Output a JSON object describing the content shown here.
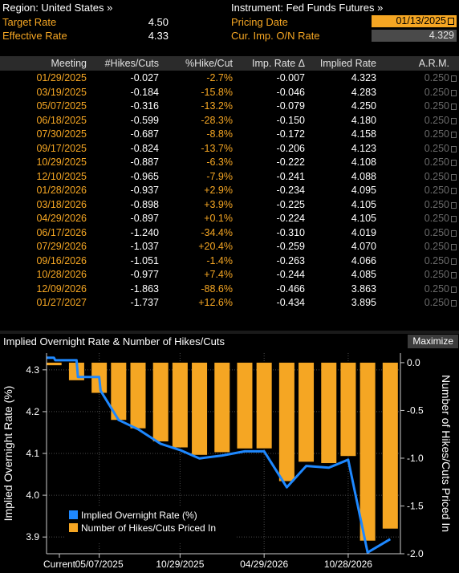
{
  "header": {
    "region_label": "Region: United States »",
    "instrument_label": "Instrument: Fed Funds Futures »",
    "target_rate_label": "Target Rate",
    "target_rate_value": "4.50",
    "effective_rate_label": "Effective Rate",
    "effective_rate_value": "4.33",
    "pricing_date_label": "Pricing Date",
    "pricing_date_value": "01/13/2025",
    "cur_imp_label": "Cur. Imp. O/N Rate",
    "cur_imp_value": "4.329"
  },
  "table": {
    "columns": [
      "Meeting",
      "#Hikes/Cuts",
      "%Hike/Cut",
      "Imp. Rate Δ",
      "Implied Rate",
      "A.R.M."
    ],
    "rows": [
      {
        "meeting": "01/29/2025",
        "hikes": "-0.027",
        "pct": "-2.7%",
        "delta": "-0.007",
        "implied": "4.323",
        "arm": "0.250"
      },
      {
        "meeting": "03/19/2025",
        "hikes": "-0.184",
        "pct": "-15.8%",
        "delta": "-0.046",
        "implied": "4.283",
        "arm": "0.250"
      },
      {
        "meeting": "05/07/2025",
        "hikes": "-0.316",
        "pct": "-13.2%",
        "delta": "-0.079",
        "implied": "4.250",
        "arm": "0.250"
      },
      {
        "meeting": "06/18/2025",
        "hikes": "-0.599",
        "pct": "-28.3%",
        "delta": "-0.150",
        "implied": "4.180",
        "arm": "0.250"
      },
      {
        "meeting": "07/30/2025",
        "hikes": "-0.687",
        "pct": "-8.8%",
        "delta": "-0.172",
        "implied": "4.158",
        "arm": "0.250"
      },
      {
        "meeting": "09/17/2025",
        "hikes": "-0.824",
        "pct": "-13.7%",
        "delta": "-0.206",
        "implied": "4.123",
        "arm": "0.250"
      },
      {
        "meeting": "10/29/2025",
        "hikes": "-0.887",
        "pct": "-6.3%",
        "delta": "-0.222",
        "implied": "4.108",
        "arm": "0.250"
      },
      {
        "meeting": "12/10/2025",
        "hikes": "-0.965",
        "pct": "-7.9%",
        "delta": "-0.241",
        "implied": "4.088",
        "arm": "0.250"
      },
      {
        "meeting": "01/28/2026",
        "hikes": "-0.937",
        "pct": "+2.9%",
        "delta": "-0.234",
        "implied": "4.095",
        "arm": "0.250"
      },
      {
        "meeting": "03/18/2026",
        "hikes": "-0.898",
        "pct": "+3.9%",
        "delta": "-0.225",
        "implied": "4.105",
        "arm": "0.250"
      },
      {
        "meeting": "04/29/2026",
        "hikes": "-0.897",
        "pct": "+0.1%",
        "delta": "-0.224",
        "implied": "4.105",
        "arm": "0.250"
      },
      {
        "meeting": "06/17/2026",
        "hikes": "-1.240",
        "pct": "-34.4%",
        "delta": "-0.310",
        "implied": "4.019",
        "arm": "0.250"
      },
      {
        "meeting": "07/29/2026",
        "hikes": "-1.037",
        "pct": "+20.4%",
        "delta": "-0.259",
        "implied": "4.070",
        "arm": "0.250"
      },
      {
        "meeting": "09/16/2026",
        "hikes": "-1.051",
        "pct": "-1.4%",
        "delta": "-0.263",
        "implied": "4.066",
        "arm": "0.250"
      },
      {
        "meeting": "10/28/2026",
        "hikes": "-0.977",
        "pct": "+7.4%",
        "delta": "-0.244",
        "implied": "4.085",
        "arm": "0.250"
      },
      {
        "meeting": "12/09/2026",
        "hikes": "-1.863",
        "pct": "-88.6%",
        "delta": "-0.466",
        "implied": "3.863",
        "arm": "0.250"
      },
      {
        "meeting": "01/27/2027",
        "hikes": "-1.737",
        "pct": "+12.6%",
        "delta": "-0.434",
        "implied": "3.895",
        "arm": "0.250"
      }
    ]
  },
  "chart": {
    "title": "Implied Overnight Rate & Number of Hikes/Cuts",
    "maximize_label": "Maximize"
  },
  "chart_data": {
    "type": "bar",
    "title": "Implied Overnight Rate & Number of Hikes/Cuts",
    "ylabel_left": "Implied Overnight Rate (%)",
    "ylabel_right": "Number of Hikes/Cuts Priced In",
    "ylim_left": [
      3.86,
      4.34
    ],
    "ylim_right": [
      -2.0,
      0.1
    ],
    "left_ticks": [
      "4.3",
      "4.2",
      "4.1",
      "4.0",
      "3.9"
    ],
    "right_ticks": [
      "0.0",
      "-0.5",
      "-1.0",
      "-1.5",
      "-2.0"
    ],
    "x_tick_labels": [
      "Current",
      "05/07/2025",
      "10/29/2025",
      "04/29/2026",
      "10/28/2026"
    ],
    "legend_position": "bottom-left",
    "colors": {
      "line": "#1e88ff",
      "bars": "#f5a623"
    },
    "series": [
      {
        "name": "Implied Overnight Rate (%)",
        "type": "line",
        "points": [
          {
            "x": "01/13/2025",
            "y": 4.329
          },
          {
            "x": "01/29/2025",
            "y": 4.329
          },
          {
            "x": "02/01/2025",
            "y": 4.323
          },
          {
            "x": "03/19/2025",
            "y": 4.323
          },
          {
            "x": "03/22/2025",
            "y": 4.283
          },
          {
            "x": "05/07/2025",
            "y": 4.283
          },
          {
            "x": "05/10/2025",
            "y": 4.25
          },
          {
            "x": "06/18/2025",
            "y": 4.18
          },
          {
            "x": "07/30/2025",
            "y": 4.158
          },
          {
            "x": "09/17/2025",
            "y": 4.123
          },
          {
            "x": "10/29/2025",
            "y": 4.108
          },
          {
            "x": "12/10/2025",
            "y": 4.088
          },
          {
            "x": "01/28/2026",
            "y": 4.095
          },
          {
            "x": "03/18/2026",
            "y": 4.105
          },
          {
            "x": "04/29/2026",
            "y": 4.105
          },
          {
            "x": "06/17/2026",
            "y": 4.019
          },
          {
            "x": "07/29/2026",
            "y": 4.07
          },
          {
            "x": "09/16/2026",
            "y": 4.066
          },
          {
            "x": "10/28/2026",
            "y": 4.085
          },
          {
            "x": "12/09/2026",
            "y": 3.863
          },
          {
            "x": "01/27/2027",
            "y": 3.895
          }
        ]
      },
      {
        "name": "Number of Hikes/Cuts Priced In",
        "type": "bar",
        "categories": [
          "01/29/2025",
          "03/19/2025",
          "05/07/2025",
          "06/18/2025",
          "07/30/2025",
          "09/17/2025",
          "10/29/2025",
          "12/10/2025",
          "01/28/2026",
          "03/18/2026",
          "04/29/2026",
          "06/17/2026",
          "07/29/2026",
          "09/16/2026",
          "10/28/2026",
          "12/09/2026",
          "01/27/2027"
        ],
        "values": [
          -0.027,
          -0.184,
          -0.316,
          -0.599,
          -0.687,
          -0.824,
          -0.887,
          -0.965,
          -0.937,
          -0.898,
          -0.897,
          -1.24,
          -1.037,
          -1.051,
          -0.977,
          -1.863,
          -1.737
        ]
      }
    ]
  }
}
